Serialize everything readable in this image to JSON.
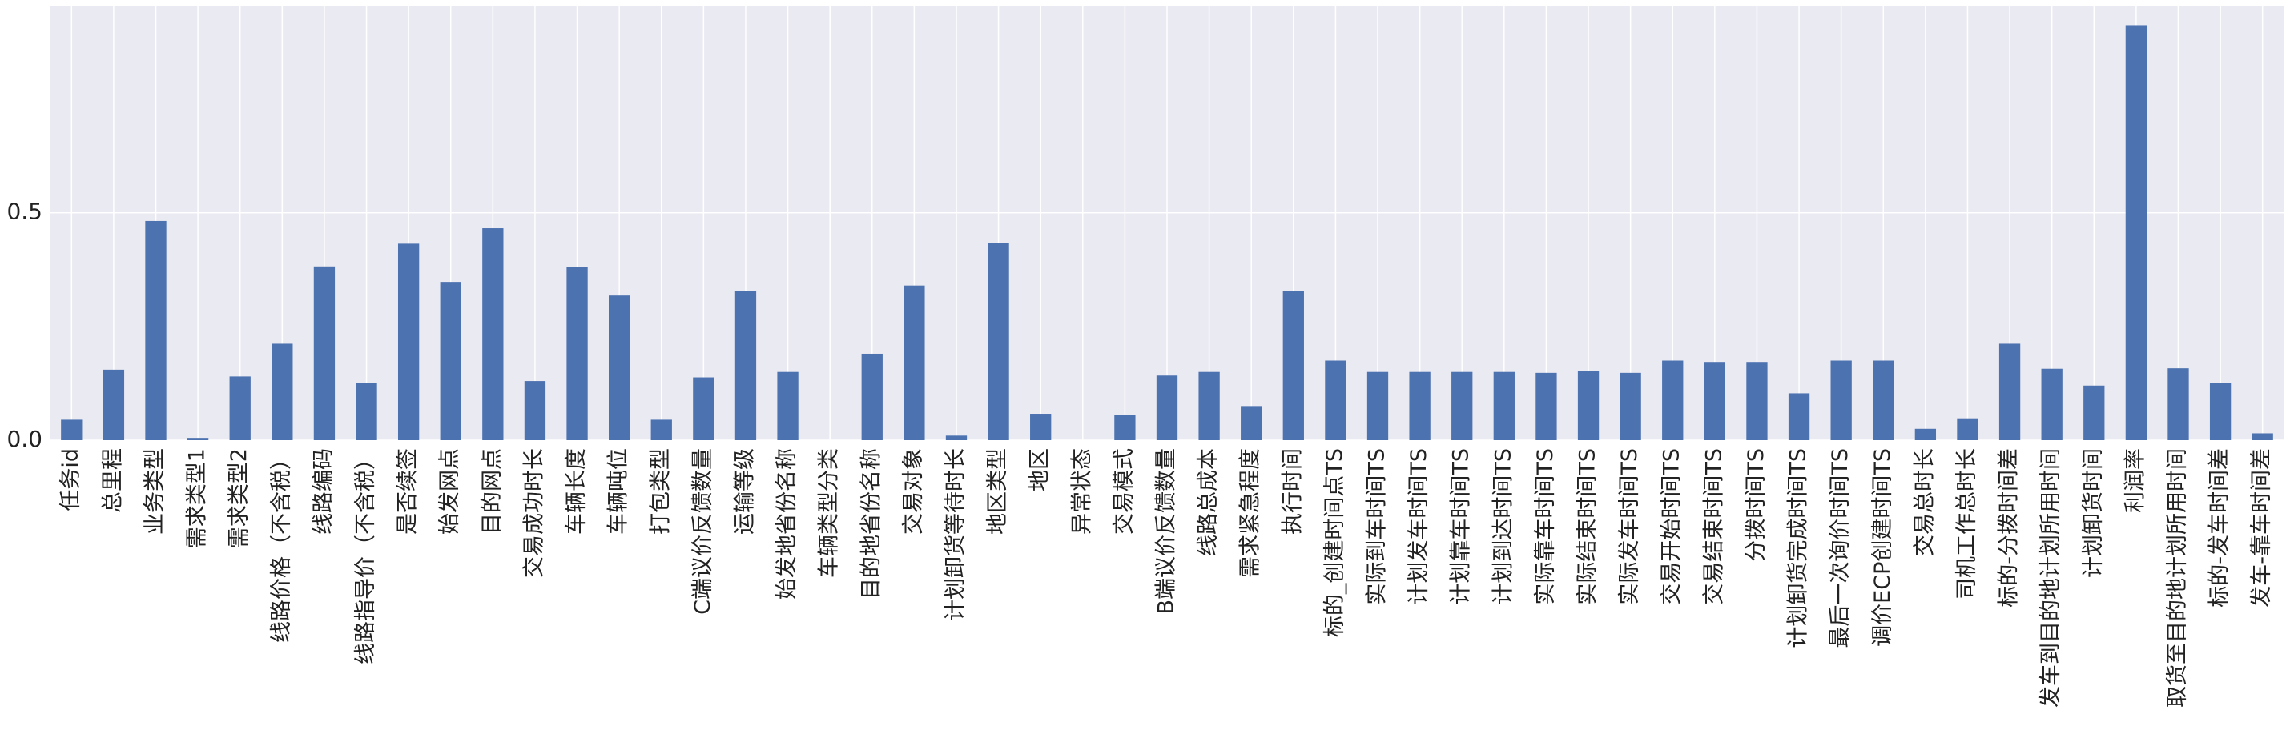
{
  "chart_data": {
    "type": "bar",
    "title": "",
    "xlabel": "",
    "ylabel": "",
    "ylim": [
      0,
      0.955
    ],
    "yticks": [
      0.0,
      0.5
    ],
    "ytick_labels": [
      "0.0",
      "0.5"
    ],
    "grid": true,
    "legend": "none",
    "bar_color": "#4c72b0",
    "plot_background": "#eaeaf2",
    "grid_color": "#ffffff",
    "categories": [
      "任务id",
      "总里程",
      "业务类型",
      "需求类型1",
      "需求类型2",
      "线路价格（不含税）",
      "线路编码",
      "线路指导价（不含税）",
      "是否续签",
      "始发网点",
      "目的网点",
      "交易成功时长",
      "车辆长度",
      "车辆吨位",
      "打包类型",
      "C端议价反馈数量",
      "运输等级",
      "始发地省份名称",
      "车辆类型分类",
      "目的地省份名称",
      "交易对象",
      "计划卸货等待时长",
      "地区类型",
      "地区",
      "异常状态",
      "交易模式",
      "B端议价反馈数量",
      "线路总成本",
      "需求紧急程度",
      "执行时间",
      "标的_创建时间点TS",
      "实际到车时间TS",
      "计划发车时间TS",
      "计划靠车时间TS",
      "计划到达时间TS",
      "实际靠车时间TS",
      "实际结束时间TS",
      "实际发车时间TS",
      "交易开始时间TS",
      "交易结束时间TS",
      "分拨时间TS",
      "计划卸货完成时间TS",
      "最后一次询价时间TS",
      "调价ECP创建时间TS",
      "交易总时长",
      "司机工作总时长",
      "标的-分拨时间差",
      "发车到目的地计划所用时间",
      "计划卸货时间",
      "利润率",
      "取货至目的地计划所用时间",
      "标的-发车时间差",
      "发车-靠车时间差"
    ],
    "values": [
      0.045,
      0.155,
      0.482,
      0.005,
      0.14,
      0.212,
      0.382,
      0.125,
      0.432,
      0.348,
      0.466,
      0.13,
      0.38,
      0.318,
      0.045,
      0.138,
      0.328,
      0.15,
      0.0,
      0.19,
      0.34,
      0.01,
      0.434,
      0.058,
      0.0,
      0.055,
      0.142,
      0.15,
      0.075,
      0.328,
      0.175,
      0.15,
      0.15,
      0.15,
      0.15,
      0.148,
      0.153,
      0.148,
      0.175,
      0.172,
      0.172,
      0.103,
      0.175,
      0.175,
      0.025,
      0.048,
      0.212,
      0.157,
      0.12,
      0.912,
      0.158,
      0.125,
      0.015
    ]
  }
}
